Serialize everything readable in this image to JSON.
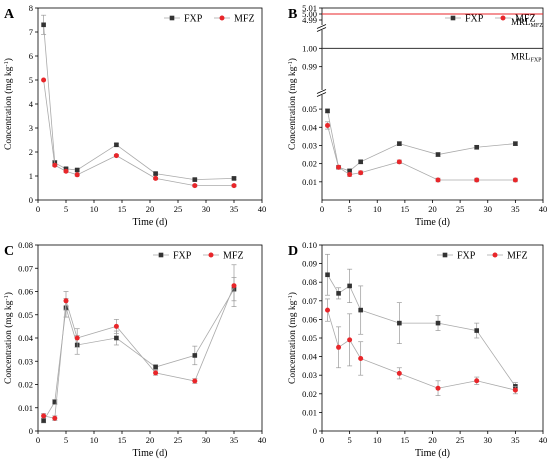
{
  "chart_data": [
    {
      "panel_label": "A",
      "type": "line",
      "xlabel": "Time (d)",
      "ylabel": "Concentration (mg kg",
      "ylabel_sup": "-1",
      "ylabel_close": ")",
      "xlim": [
        0,
        40
      ],
      "ylim": [
        0,
        8
      ],
      "x_ticks": [
        0,
        5,
        10,
        15,
        20,
        25,
        30,
        35,
        40
      ],
      "y_ticks": [
        0,
        1,
        2,
        3,
        4,
        5,
        6,
        7,
        8
      ],
      "legend_position": "top-right",
      "series": [
        {
          "name": "FXP",
          "color": "#333333",
          "marker": "square",
          "x": [
            1,
            3,
            5,
            7,
            14,
            21,
            28,
            35
          ],
          "y": [
            7.3,
            1.55,
            1.3,
            1.25,
            2.3,
            1.1,
            0.85,
            0.9
          ],
          "err": [
            0.4,
            0.1,
            0.05,
            0.05,
            0.05,
            0.05,
            0.05,
            0.05
          ]
        },
        {
          "name": "MFZ",
          "color": "#e8262a",
          "marker": "circle",
          "x": [
            1,
            3,
            5,
            7,
            14,
            21,
            28,
            35
          ],
          "y": [
            5.0,
            1.45,
            1.2,
            1.05,
            1.85,
            0.9,
            0.6,
            0.6
          ],
          "err": [
            0,
            0.05,
            0.05,
            0.05,
            0.05,
            0.05,
            0.05,
            0.05
          ]
        }
      ]
    },
    {
      "panel_label": "B",
      "type": "line",
      "xlabel": "Time (d)",
      "ylabel": "Concentration (mg kg",
      "ylabel_sup": "-1",
      "ylabel_close": ")",
      "xlim": [
        0,
        40
      ],
      "x_ticks": [
        0,
        5,
        10,
        15,
        20,
        25,
        30,
        35,
        40
      ],
      "y_axis_break": true,
      "y_segments": [
        {
          "ylim": [
            0.98,
            1.01
          ],
          "ticks": [
            0.99,
            1.0
          ],
          "tick_labels": [
            "0.99",
            "1.00"
          ]
        },
        {
          "ylim": [
            4.98,
            5.01
          ],
          "ticks": [
            4.99,
            5.0,
            5.01
          ],
          "tick_labels": [
            "4.99",
            "5.00",
            "5.01"
          ]
        }
      ],
      "y_lower": {
        "ylim": [
          0,
          0.055
        ],
        "ticks": [
          0.01,
          0.02,
          0.03,
          0.04,
          0.05
        ],
        "tick_labels": [
          "0.01",
          "0.02",
          "0.03",
          "0.04",
          "0.05"
        ]
      },
      "reference_lines": [
        {
          "label": "MRL",
          "label_sub": "MFZ",
          "y": 5.0,
          "color": "#e8262a"
        },
        {
          "label": "MRL",
          "label_sub": "FXP",
          "y": 1.0,
          "color": "#333333"
        }
      ],
      "legend_position": "top-right",
      "series": [
        {
          "name": "FXP",
          "color": "#333333",
          "marker": "square",
          "x": [
            1,
            3,
            5,
            7,
            14,
            21,
            28,
            35
          ],
          "y": [
            0.049,
            0.018,
            0.016,
            0.021,
            0.031,
            0.025,
            0.029,
            0.031
          ],
          "err": [
            0.001,
            0.001,
            0.001,
            0.001,
            0.001,
            0.001,
            0.001,
            0.001
          ]
        },
        {
          "name": "MFZ",
          "color": "#e8262a",
          "marker": "circle",
          "x": [
            1,
            3,
            5,
            7,
            14,
            21,
            28,
            35
          ],
          "y": [
            0.041,
            0.018,
            0.014,
            0.015,
            0.021,
            0.011,
            0.011,
            0.011
          ],
          "err": [
            0.002,
            0.001,
            0.001,
            0.001,
            0.001,
            0.001,
            0.001,
            0.001
          ]
        }
      ]
    },
    {
      "panel_label": "C",
      "type": "line",
      "xlabel": "Time (d)",
      "ylabel": "Concentration (mg kg",
      "ylabel_sup": "-1",
      "ylabel_close": ")",
      "xlim": [
        0,
        40
      ],
      "ylim": [
        0,
        0.08
      ],
      "x_ticks": [
        0,
        5,
        10,
        15,
        20,
        25,
        30,
        35,
        40
      ],
      "y_ticks": [
        0,
        0.01,
        0.02,
        0.03,
        0.04,
        0.05,
        0.06,
        0.07,
        0.08
      ],
      "y_tick_labels": [
        "0",
        "0.01",
        "0.02",
        "0.03",
        "0.04",
        "0.05",
        "0.06",
        "0.07",
        "0.08"
      ],
      "legend_position": "top-center",
      "series": [
        {
          "name": "FXP",
          "color": "#333333",
          "marker": "square",
          "x": [
            1,
            3,
            5,
            7,
            14,
            21,
            28,
            35
          ],
          "y": [
            0.0045,
            0.0125,
            0.053,
            0.037,
            0.04,
            0.0275,
            0.0325,
            0.061
          ],
          "err": [
            0.001,
            0.001,
            0.004,
            0.004,
            0.003,
            0.001,
            0.004,
            0.005
          ]
        },
        {
          "name": "MFZ",
          "color": "#e8262a",
          "marker": "circle",
          "x": [
            1,
            3,
            5,
            7,
            14,
            21,
            28,
            35
          ],
          "y": [
            0.0065,
            0.0055,
            0.056,
            0.04,
            0.045,
            0.025,
            0.0215,
            0.0625
          ],
          "err": [
            0.001,
            0.001,
            0.004,
            0.004,
            0.003,
            0.001,
            0.001,
            0.009
          ]
        }
      ]
    },
    {
      "panel_label": "D",
      "type": "line",
      "xlabel": "Time (d)",
      "ylabel": "Concentration (mg kg",
      "ylabel_sup": "-1",
      "ylabel_close": ")",
      "xlim": [
        0,
        40
      ],
      "ylim": [
        0,
        0.1
      ],
      "x_ticks": [
        0,
        5,
        10,
        15,
        20,
        25,
        30,
        35,
        40
      ],
      "y_ticks": [
        0,
        0.01,
        0.02,
        0.03,
        0.04,
        0.05,
        0.06,
        0.07,
        0.08,
        0.09,
        0.1
      ],
      "y_tick_labels": [
        "0",
        "0.01",
        "0.02",
        "0.03",
        "0.04",
        "0.05",
        "0.06",
        "0.07",
        "0.08",
        "0.09",
        "0.10"
      ],
      "legend_position": "top-center",
      "series": [
        {
          "name": "FXP",
          "color": "#333333",
          "marker": "square",
          "x": [
            1,
            3,
            5,
            7,
            14,
            21,
            28,
            35
          ],
          "y": [
            0.084,
            0.074,
            0.078,
            0.065,
            0.058,
            0.058,
            0.054,
            0.024
          ],
          "err": [
            0.011,
            0.003,
            0.009,
            0.013,
            0.011,
            0.004,
            0.004,
            0.002
          ]
        },
        {
          "name": "MFZ",
          "color": "#e8262a",
          "marker": "circle",
          "x": [
            1,
            3,
            5,
            7,
            14,
            21,
            28,
            35
          ],
          "y": [
            0.065,
            0.045,
            0.049,
            0.039,
            0.031,
            0.023,
            0.027,
            0.022
          ],
          "err": [
            0.006,
            0.011,
            0.014,
            0.009,
            0.003,
            0.004,
            0.002,
            0.002
          ]
        }
      ]
    }
  ]
}
